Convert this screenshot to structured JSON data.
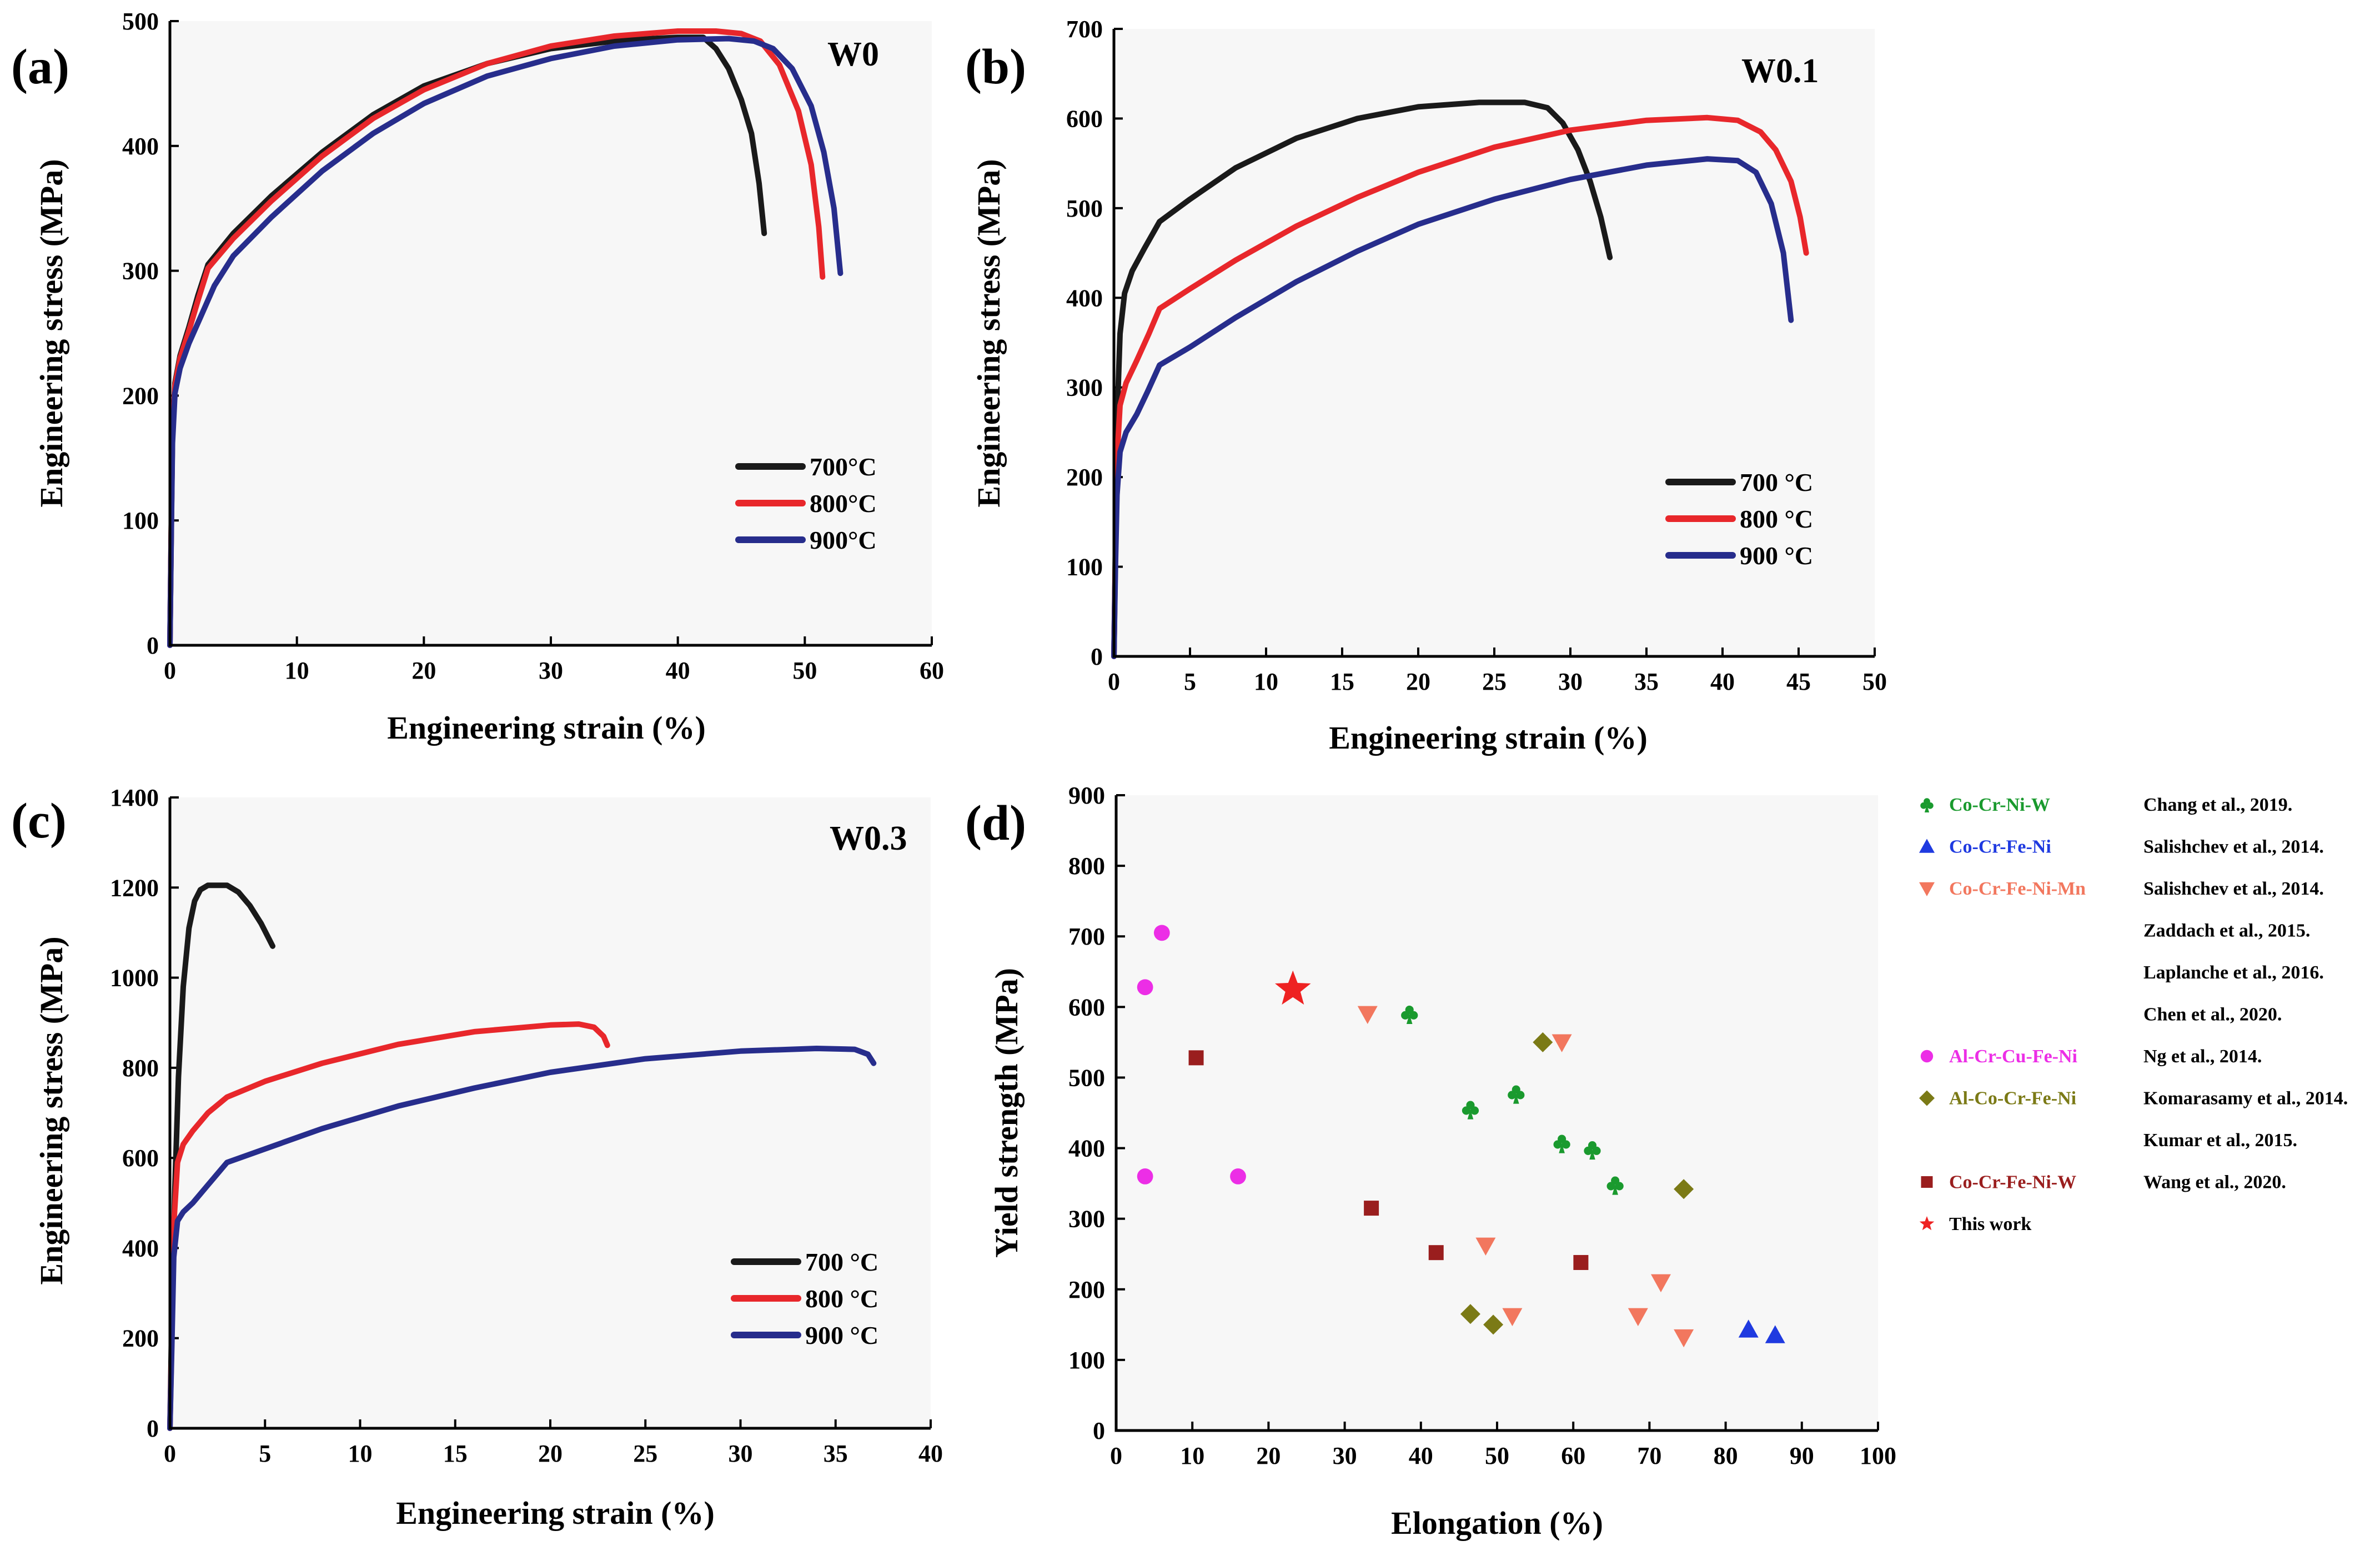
{
  "chart_data": [
    {
      "type": "line",
      "panel_label": "(a)",
      "sample": "W0",
      "xlabel": "Engineering strain (%)",
      "ylabel": "Engineering stress (MPa)",
      "xlim": [
        0,
        60
      ],
      "ylim": [
        0,
        500
      ],
      "xticks": [
        0,
        10,
        20,
        30,
        40,
        50,
        60
      ],
      "yticks": [
        0,
        100,
        200,
        300,
        400,
        500
      ],
      "legend_position": "bottom-right",
      "series": [
        {
          "name": "700°C",
          "color": "#1a1a1a",
          "x": [
            0,
            0.1,
            0.2,
            0.4,
            0.8,
            1.5,
            2.2,
            3,
            5,
            8,
            12,
            16,
            20,
            25,
            30,
            35,
            38,
            40,
            42,
            43,
            44,
            45,
            45.8,
            46.4,
            46.8
          ],
          "y": [
            0,
            90,
            170,
            210,
            232,
            255,
            280,
            305,
            330,
            360,
            395,
            425,
            448,
            466,
            478,
            484,
            486,
            487,
            487,
            478,
            462,
            437,
            410,
            370,
            330
          ]
        },
        {
          "name": "800°C",
          "color": "#e8272b",
          "x": [
            0,
            0.1,
            0.2,
            0.4,
            0.8,
            1.5,
            2.2,
            3,
            5,
            8,
            12,
            16,
            20,
            25,
            30,
            35,
            40,
            43,
            45,
            46.5,
            48,
            49.5,
            50.5,
            51.1,
            51.4
          ],
          "y": [
            0,
            90,
            168,
            208,
            230,
            252,
            276,
            302,
            326,
            356,
            392,
            422,
            445,
            466,
            480,
            488,
            492,
            492,
            490,
            484,
            465,
            428,
            385,
            335,
            295
          ]
        },
        {
          "name": "900°C",
          "color": "#272d8c",
          "x": [
            0,
            0.1,
            0.2,
            0.4,
            0.8,
            1.5,
            2.5,
            3.5,
            5,
            8,
            12,
            16,
            20,
            25,
            30,
            35,
            40,
            44,
            46,
            47.5,
            49,
            50.5,
            51.5,
            52.3,
            52.8
          ],
          "y": [
            0,
            85,
            162,
            202,
            222,
            242,
            265,
            288,
            312,
            343,
            380,
            410,
            434,
            456,
            470,
            480,
            485,
            486,
            484,
            478,
            462,
            432,
            395,
            350,
            298
          ]
        }
      ]
    },
    {
      "type": "line",
      "panel_label": "(b)",
      "sample": "W0.1",
      "xlabel": "Engineering strain (%)",
      "ylabel": "Engineering stress (MPa)",
      "xlim": [
        0,
        50
      ],
      "ylim": [
        0,
        700
      ],
      "xticks": [
        0,
        5,
        10,
        15,
        20,
        25,
        30,
        35,
        40,
        45,
        50
      ],
      "yticks": [
        0,
        100,
        200,
        300,
        400,
        500,
        600,
        700
      ],
      "legend_position": "bottom-right",
      "series": [
        {
          "name": "700 °C",
          "color": "#1a1a1a",
          "x": [
            0,
            0.1,
            0.2,
            0.4,
            0.7,
            1.2,
            2,
            3,
            5,
            8,
            12,
            16,
            20,
            24,
            27,
            28.5,
            29.5,
            30.5,
            31.3,
            32,
            32.6
          ],
          "y": [
            0,
            120,
            260,
            360,
            405,
            430,
            455,
            485,
            510,
            545,
            578,
            600,
            613,
            618,
            618,
            612,
            595,
            565,
            530,
            490,
            445
          ]
        },
        {
          "name": "800 °C",
          "color": "#e8272b",
          "x": [
            0,
            0.1,
            0.2,
            0.4,
            0.8,
            1.5,
            2.3,
            3,
            5,
            8,
            12,
            16,
            20,
            25,
            30,
            35,
            39,
            41,
            42.5,
            43.5,
            44.5,
            45.1,
            45.5
          ],
          "y": [
            0,
            110,
            220,
            280,
            305,
            330,
            360,
            388,
            410,
            442,
            480,
            512,
            540,
            568,
            587,
            598,
            601,
            598,
            585,
            565,
            530,
            490,
            450
          ]
        },
        {
          "name": "900 °C",
          "color": "#272d8c",
          "x": [
            0,
            0.1,
            0.2,
            0.4,
            0.8,
            1.5,
            2.2,
            3,
            5,
            8,
            12,
            16,
            20,
            25,
            30,
            35,
            39,
            41,
            42.2,
            43.2,
            44,
            44.5
          ],
          "y": [
            0,
            100,
            180,
            228,
            250,
            270,
            295,
            325,
            345,
            378,
            418,
            452,
            482,
            510,
            532,
            548,
            555,
            553,
            540,
            505,
            450,
            375
          ]
        }
      ]
    },
    {
      "type": "line",
      "panel_label": "(c)",
      "sample": "W0.3",
      "xlabel": "Engineering strain (%)",
      "ylabel": "Engineering stress (MPa)",
      "xlim": [
        0,
        40
      ],
      "ylim": [
        0,
        1400
      ],
      "xticks": [
        0,
        5,
        10,
        15,
        20,
        25,
        30,
        35,
        40
      ],
      "yticks": [
        0,
        200,
        400,
        600,
        800,
        1000,
        1200,
        1400
      ],
      "legend_position": "bottom-right",
      "series": [
        {
          "name": "700 °C",
          "color": "#1a1a1a",
          "x": [
            0,
            0.1,
            0.25,
            0.45,
            0.7,
            1,
            1.3,
            1.6,
            2,
            2.5,
            3,
            3.6,
            4.2,
            4.8,
            5.4
          ],
          "y": [
            0,
            250,
            520,
            780,
            980,
            1110,
            1170,
            1195,
            1205,
            1205,
            1205,
            1190,
            1160,
            1120,
            1070
          ]
        },
        {
          "name": "800 °C",
          "color": "#e8272b",
          "x": [
            0,
            0.1,
            0.2,
            0.4,
            0.7,
            1.2,
            2,
            3,
            5,
            8,
            12,
            16,
            20,
            21.5,
            22.3,
            22.8,
            23
          ],
          "y": [
            0,
            200,
            450,
            590,
            630,
            660,
            700,
            735,
            770,
            810,
            852,
            880,
            895,
            897,
            890,
            870,
            850
          ]
        },
        {
          "name": "900 °C",
          "color": "#272d8c",
          "x": [
            0,
            0.1,
            0.2,
            0.4,
            0.7,
            1.2,
            2,
            3,
            5,
            8,
            12,
            16,
            20,
            25,
            30,
            34,
            36,
            36.7,
            37
          ],
          "y": [
            0,
            180,
            380,
            460,
            480,
            500,
            540,
            590,
            620,
            665,
            715,
            755,
            790,
            820,
            837,
            843,
            841,
            830,
            810
          ]
        }
      ]
    },
    {
      "type": "scatter",
      "panel_label": "(d)",
      "xlabel": "Elongation (%)",
      "ylabel": "Yield strength (MPa)",
      "xlim": [
        0,
        100
      ],
      "ylim": [
        0,
        900
      ],
      "xticks": [
        0,
        10,
        20,
        30,
        40,
        50,
        60,
        70,
        80,
        90,
        100
      ],
      "yticks": [
        0,
        100,
        200,
        300,
        400,
        500,
        600,
        700,
        800,
        900
      ],
      "legend_position": "outside-right",
      "series": [
        {
          "name": "Co-Cr-Ni-W",
          "reference": "Chang et al., 2019.",
          "marker": "club",
          "color": "#1a9a2e",
          "x": [
            38.5,
            46.5,
            52.5,
            58.5,
            62.5,
            65.5
          ],
          "y": [
            590,
            455,
            477,
            407,
            398,
            348
          ]
        },
        {
          "name": "Co-Cr-Fe-Ni",
          "reference": "Salishchev et al., 2014.",
          "marker": "triangle-up",
          "color": "#1f3ae0",
          "x": [
            83,
            86.5
          ],
          "y": [
            143,
            135
          ]
        },
        {
          "name": "Co-Cr-Fe-Ni-Mn",
          "reference": "Salishchev et al., 2014.",
          "marker": "triangle-down",
          "color": "#f2775e",
          "x": [
            33,
            58.5,
            48.5,
            71.5,
            52,
            68.5,
            74.5
          ],
          "y": [
            590,
            550,
            262,
            210,
            162,
            162,
            132
          ]
        },
        {
          "name": "",
          "reference": "Zaddach et al., 2015.",
          "marker": "none",
          "color": "#f2775e",
          "x": [],
          "y": []
        },
        {
          "name": "",
          "reference": "Laplanche et al., 2016.",
          "marker": "none",
          "color": "#f2775e",
          "x": [],
          "y": []
        },
        {
          "name": "",
          "reference": "Chen et al., 2020.",
          "marker": "none",
          "color": "#f2775e",
          "x": [],
          "y": []
        },
        {
          "name": "Al-Cr-Cu-Fe-Ni",
          "reference": "Ng et al., 2014.",
          "marker": "circle",
          "color": "#ec2ee6",
          "x": [
            6,
            3.8,
            3.8,
            16
          ],
          "y": [
            705,
            628,
            360,
            360
          ]
        },
        {
          "name": "Al-Co-Cr-Fe-Ni",
          "reference": "Komarasamy et al., 2014.",
          "marker": "diamond",
          "color": "#7b7a16",
          "x": [
            56,
            74.5,
            46.5,
            49.5
          ],
          "y": [
            550,
            342,
            165,
            150
          ]
        },
        {
          "name": "",
          "reference": "Kumar et al., 2015.",
          "marker": "none",
          "color": "#7b7a16",
          "x": [],
          "y": []
        },
        {
          "name": "Co-Cr-Fe-Ni-W",
          "reference": "Wang et al., 2020.",
          "marker": "square",
          "color": "#9a1e1e",
          "x": [
            10.5,
            33.5,
            42,
            61
          ],
          "y": [
            528,
            315,
            252,
            238
          ]
        },
        {
          "name": "This work",
          "reference": "",
          "marker": "star",
          "color": "#ee2222",
          "x": [
            23.2
          ],
          "y": [
            625
          ]
        }
      ]
    }
  ]
}
